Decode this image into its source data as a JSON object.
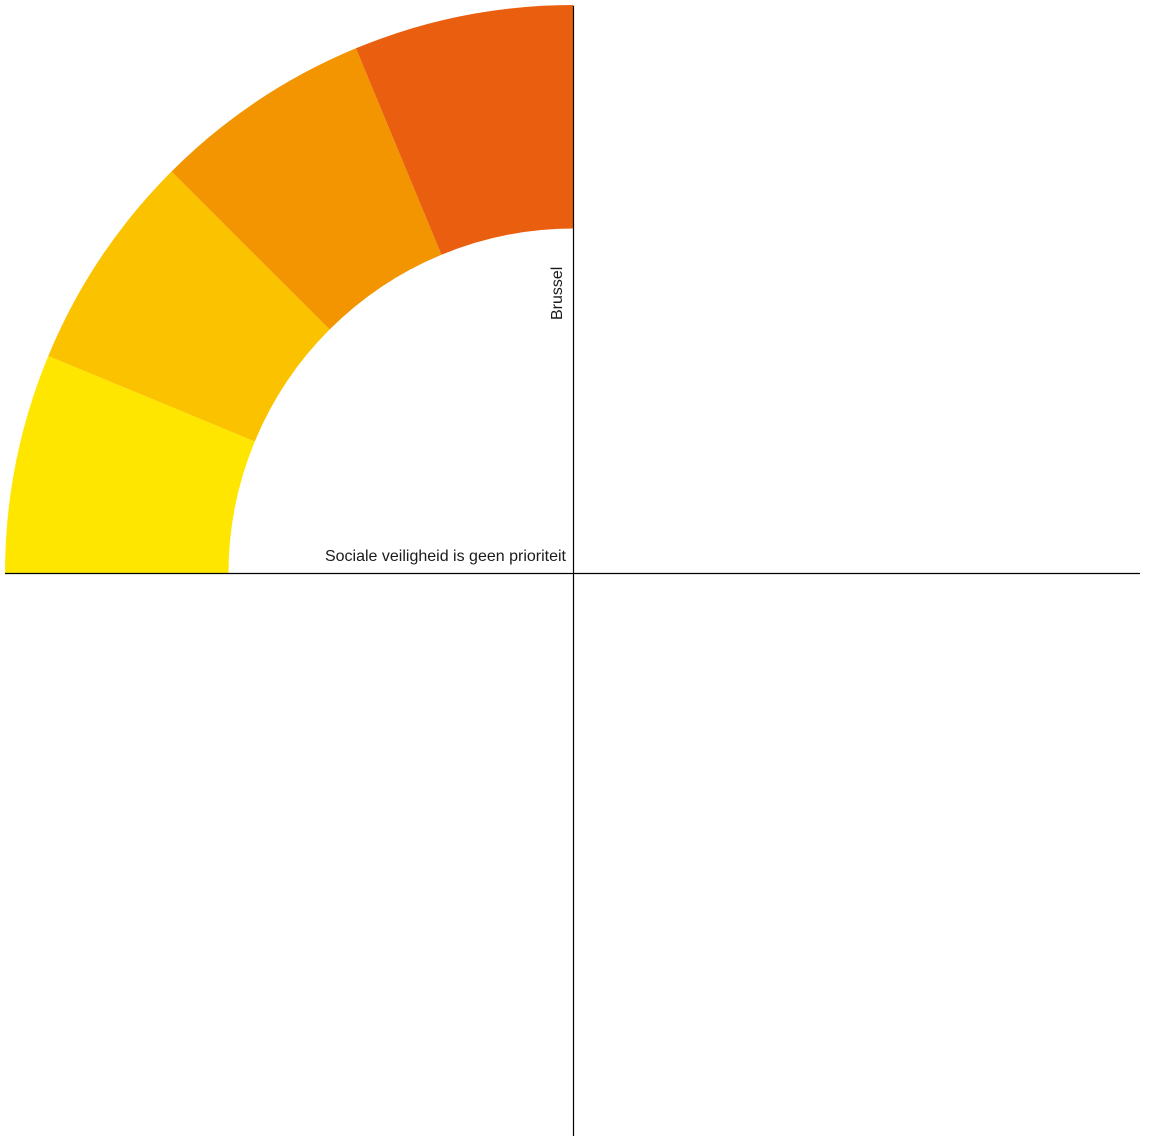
{
  "labels": {
    "horizontal_axis": "Sociale veiligheid is geen prioriteit",
    "vertical_axis": "Brussel"
  },
  "segments": [
    {
      "color": "#FFE600"
    },
    {
      "color": "#FBC200"
    },
    {
      "color": "#F29500"
    },
    {
      "color": "#E95E0F"
    }
  ]
}
